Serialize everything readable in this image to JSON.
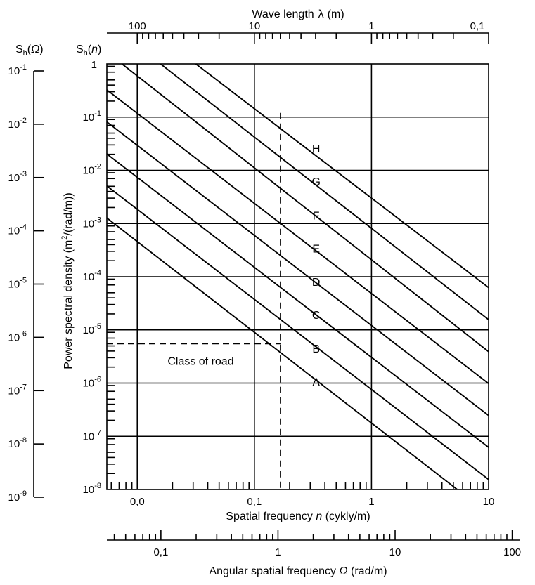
{
  "chart_data": {
    "type": "line",
    "title": "",
    "top_axis": {
      "label": "Wave length",
      "symbol": "λ",
      "unit": "(m)",
      "scale": "log",
      "ticks": [
        "100",
        "10",
        "1",
        "0,1"
      ]
    },
    "left_axis": {
      "label_base": "S",
      "label_sub": "h",
      "label_arg": "Ω",
      "scale": "log",
      "tick_base": "10",
      "tick_exps": [
        "-1",
        "-2",
        "-3",
        "-4",
        "-5",
        "-6",
        "-7",
        "-8",
        "-9"
      ]
    },
    "y_axis": {
      "symbol_base": "S",
      "symbol_sub": "h",
      "symbol_arg": "n",
      "label_pre": "Power spectral density (m",
      "label_sup": "2",
      "label_post": "/(rad/m))",
      "scale": "log",
      "ylim": [
        1e-08,
        1
      ],
      "tick_top": "1",
      "tick_base": "10",
      "tick_exps": [
        "-1",
        "-2",
        "-3",
        "-4",
        "-5",
        "-6",
        "-7",
        "-8"
      ]
    },
    "x_axis": {
      "label_pre": "Spatial frequency ",
      "label_var": "n",
      "label_post": " (cykly/m)",
      "scale": "log",
      "xlim": [
        0.0055,
        10
      ],
      "ticks": [
        "0,0",
        "0,1",
        "1",
        "10"
      ]
    },
    "bottom_axis": {
      "label_pre": "Angular spatial frequency ",
      "label_var": "Ω",
      "label_post": " (rad/m)",
      "scale": "log",
      "ticks": [
        "0,1",
        "1",
        "10",
        "100"
      ]
    },
    "series": [
      {
        "name": "A",
        "x": [
          0.0055,
          5.4
        ],
        "y": [
          0.00127,
          1e-08
        ]
      },
      {
        "name": "B",
        "x": [
          0.0055,
          10
        ],
        "y": [
          0.00508,
          1.54e-08
        ]
      },
      {
        "name": "C",
        "x": [
          0.0055,
          10
        ],
        "y": [
          0.0203,
          6.2e-08
        ]
      },
      {
        "name": "D",
        "x": [
          0.0055,
          10
        ],
        "y": [
          0.081,
          2.46e-07
        ]
      },
      {
        "name": "E",
        "x": [
          0.0055,
          10
        ],
        "y": [
          0.325,
          9.8e-07
        ]
      },
      {
        "name": "F",
        "x": [
          0.0074,
          10
        ],
        "y": [
          1.0,
          3.9e-06
        ]
      },
      {
        "name": "G",
        "x": [
          0.0158,
          10
        ],
        "y": [
          1.0,
          1.56e-05
        ]
      },
      {
        "name": "H",
        "x": [
          0.0316,
          10
        ],
        "y": [
          1.0,
          6.25e-05
        ]
      }
    ],
    "class_labels": [
      {
        "text": "H",
        "x": 0.31,
        "y": 0.026
      },
      {
        "text": "G",
        "x": 0.31,
        "y": 0.0062
      },
      {
        "text": "F",
        "x": 0.31,
        "y": 0.00143
      },
      {
        "text": "E",
        "x": 0.31,
        "y": 0.00034
      },
      {
        "text": "D",
        "x": 0.31,
        "y": 8.1e-05
      },
      {
        "text": "C",
        "x": 0.31,
        "y": 1.93e-05
      },
      {
        "text": "B",
        "x": 0.31,
        "y": 4.5e-06
      },
      {
        "text": "A",
        "x": 0.31,
        "y": 1.07e-06
      }
    ],
    "annotation": {
      "text": "Class of road",
      "ref_x": 0.167,
      "ref_y": 5.5e-06,
      "ref_y_top": 0.12
    },
    "grid": true
  }
}
